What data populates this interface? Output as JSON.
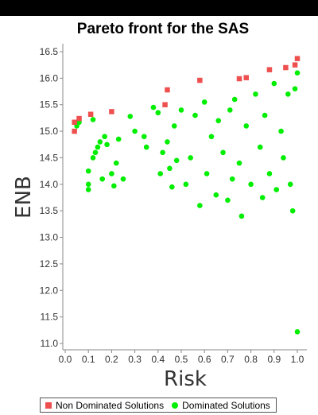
{
  "chart_data": {
    "type": "scatter",
    "title": "Pareto front for the SAS",
    "xlabel": "Risk",
    "ylabel": "ENB",
    "xlim": [
      0.0,
      1.0
    ],
    "ylim": [
      11.0,
      16.5
    ],
    "xticks": [
      "0.0",
      "0.1",
      "0.2",
      "0.3",
      "0.4",
      "0.5",
      "0.6",
      "0.7",
      "0.8",
      "0.9",
      "1.0"
    ],
    "yticks": [
      "11.0",
      "11.5",
      "12.0",
      "12.5",
      "13.0",
      "13.5",
      "14.0",
      "14.5",
      "15.0",
      "15.5",
      "16.0",
      "16.5"
    ],
    "grid": false,
    "legend_position": "bottom",
    "series": [
      {
        "name": "Non Dominated Solutions",
        "marker": "square",
        "color": "#ee5050",
        "points": [
          [
            0.04,
            15.0
          ],
          [
            0.04,
            15.17
          ],
          [
            0.06,
            15.24
          ],
          [
            0.11,
            15.32
          ],
          [
            0.2,
            15.37
          ],
          [
            0.43,
            15.5
          ],
          [
            0.44,
            15.78
          ],
          [
            0.58,
            15.96
          ],
          [
            0.75,
            15.99
          ],
          [
            0.78,
            16.01
          ],
          [
            0.88,
            16.16
          ],
          [
            0.95,
            16.2
          ],
          [
            0.99,
            16.25
          ],
          [
            1.0,
            16.37
          ]
        ]
      },
      {
        "name": "Dominated Solutions",
        "marker": "circle",
        "color": "#00ee00",
        "points": [
          [
            0.05,
            15.1
          ],
          [
            0.06,
            15.17
          ],
          [
            0.1,
            14.25
          ],
          [
            0.1,
            13.9
          ],
          [
            0.1,
            14.0
          ],
          [
            0.12,
            14.5
          ],
          [
            0.12,
            15.22
          ],
          [
            0.13,
            14.6
          ],
          [
            0.14,
            14.7
          ],
          [
            0.15,
            14.8
          ],
          [
            0.16,
            14.1
          ],
          [
            0.17,
            14.9
          ],
          [
            0.18,
            14.75
          ],
          [
            0.2,
            14.2
          ],
          [
            0.21,
            13.97
          ],
          [
            0.22,
            14.4
          ],
          [
            0.23,
            14.85
          ],
          [
            0.25,
            14.1
          ],
          [
            0.28,
            15.28
          ],
          [
            0.3,
            15.0
          ],
          [
            0.34,
            14.9
          ],
          [
            0.35,
            14.7
          ],
          [
            0.38,
            15.45
          ],
          [
            0.4,
            15.35
          ],
          [
            0.41,
            14.2
          ],
          [
            0.42,
            14.6
          ],
          [
            0.44,
            14.8
          ],
          [
            0.45,
            14.3
          ],
          [
            0.46,
            13.95
          ],
          [
            0.47,
            15.1
          ],
          [
            0.48,
            14.45
          ],
          [
            0.5,
            15.4
          ],
          [
            0.52,
            14.0
          ],
          [
            0.54,
            14.5
          ],
          [
            0.56,
            15.3
          ],
          [
            0.58,
            13.6
          ],
          [
            0.6,
            15.55
          ],
          [
            0.61,
            14.2
          ],
          [
            0.63,
            14.9
          ],
          [
            0.65,
            13.8
          ],
          [
            0.66,
            15.2
          ],
          [
            0.68,
            14.6
          ],
          [
            0.7,
            13.7
          ],
          [
            0.71,
            15.4
          ],
          [
            0.72,
            14.1
          ],
          [
            0.73,
            15.6
          ],
          [
            0.75,
            14.4
          ],
          [
            0.76,
            13.4
          ],
          [
            0.78,
            15.1
          ],
          [
            0.8,
            14.0
          ],
          [
            0.82,
            15.7
          ],
          [
            0.84,
            14.7
          ],
          [
            0.85,
            13.75
          ],
          [
            0.86,
            15.3
          ],
          [
            0.88,
            14.2
          ],
          [
            0.9,
            15.9
          ],
          [
            0.91,
            13.9
          ],
          [
            0.93,
            15.0
          ],
          [
            0.94,
            14.5
          ],
          [
            0.96,
            15.7
          ],
          [
            0.97,
            14.0
          ],
          [
            0.98,
            13.5
          ],
          [
            0.99,
            15.8
          ],
          [
            1.0,
            16.1
          ],
          [
            1.0,
            11.22
          ]
        ]
      }
    ]
  }
}
